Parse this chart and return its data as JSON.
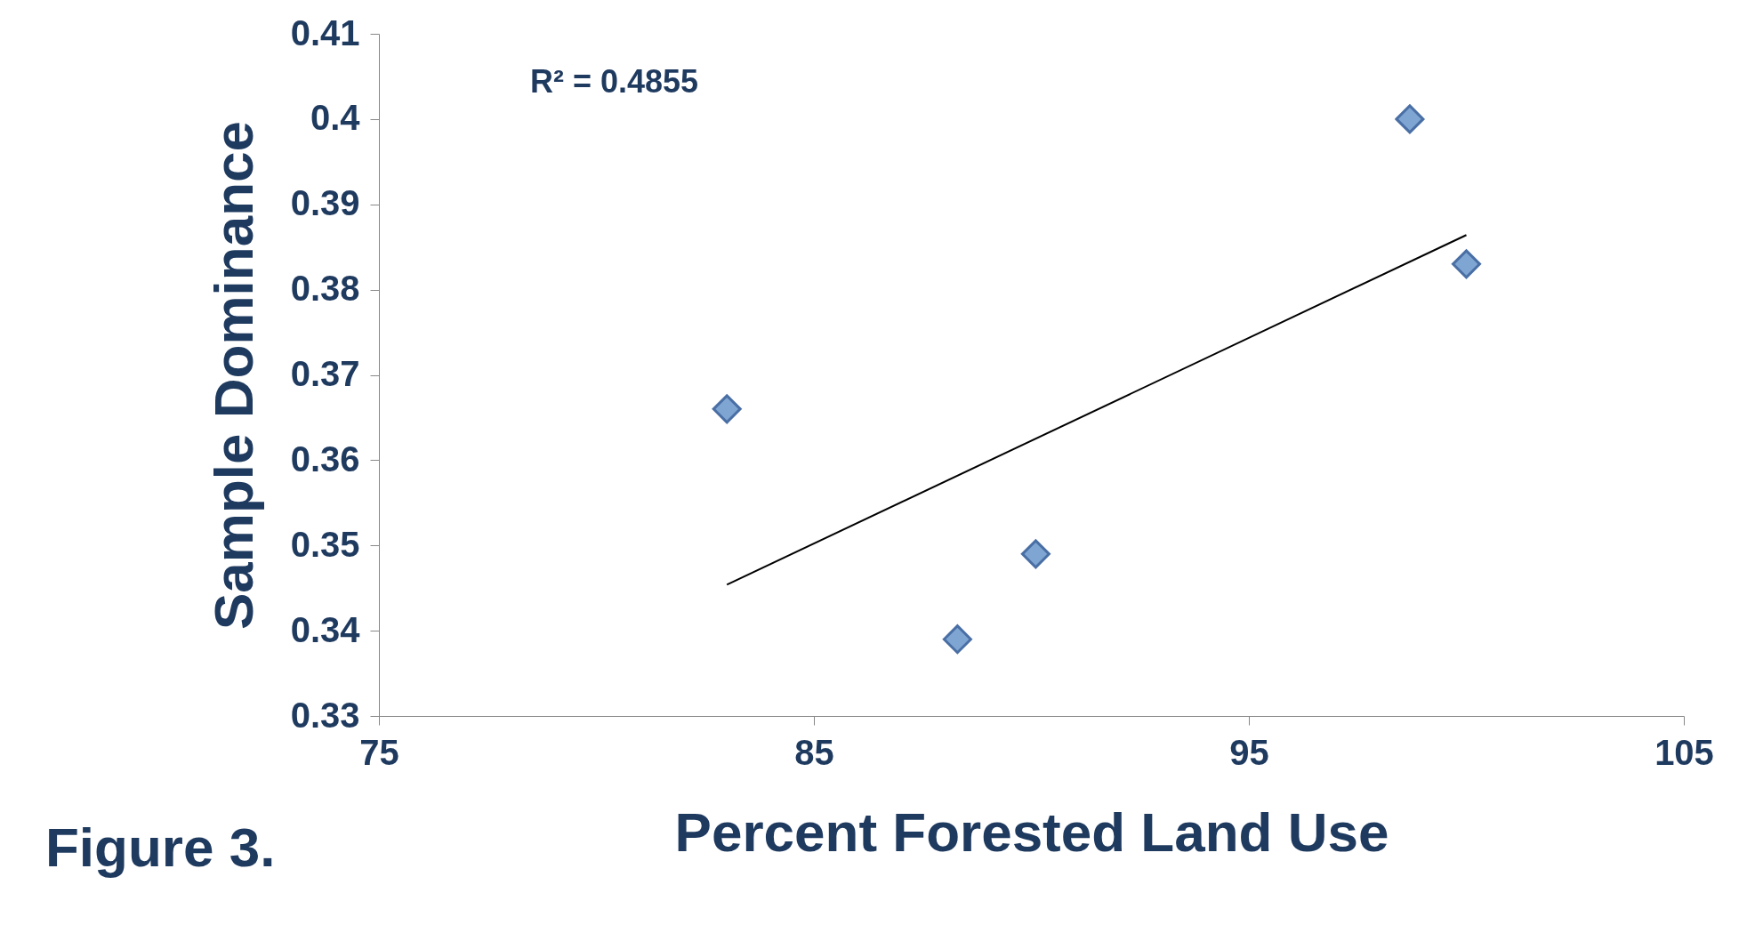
{
  "chart_data": {
    "type": "scatter",
    "xlabel": "Percent Forested Land Use",
    "ylabel": "Sample Dominance",
    "x": [
      83.0,
      88.3,
      90.1,
      98.7,
      100.0
    ],
    "series": [
      {
        "color": "#7fa6d3",
        "marker": "diamond",
        "values": [
          0.366,
          0.339,
          0.349,
          0.4,
          0.383
        ]
      },
      {
        "type": "line",
        "color": "#000000",
        "marker": "none",
        "line_style": "solid",
        "x": [
          83.0,
          100.0
        ],
        "values": [
          0.3454,
          0.3864
        ]
      }
    ],
    "xlim": [
      75,
      105
    ],
    "xticks": [
      75,
      85,
      95,
      105
    ],
    "ylim": [
      0.33,
      0.41
    ],
    "yticks": [
      0.33,
      0.34,
      0.35,
      0.36,
      0.37,
      0.38,
      0.39,
      0.4,
      0.41
    ],
    "grid": false,
    "annotations": [
      "R² = 0.4855",
      "Figure 3."
    ]
  }
}
